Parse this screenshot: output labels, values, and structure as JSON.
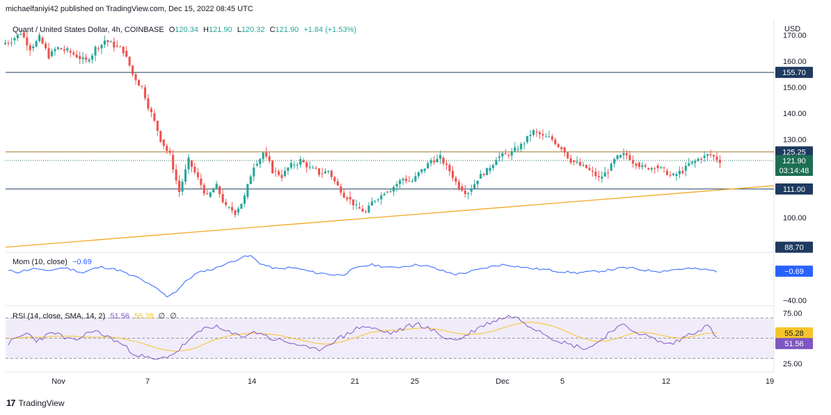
{
  "header": {
    "published": "michaelfaniyi42 published on TradingView.com, Dec 15, 2022 08:45 UTC"
  },
  "brand": {
    "name": "TradingView",
    "logo": "tv-logo-icon"
  },
  "colors": {
    "up": "#26a69a",
    "down": "#ef5350",
    "resistance": "#f5a623",
    "trend": "#f5a623",
    "level": "#1e3a5f",
    "price_tag": "#1e6e55",
    "mom_line": "#2962ff",
    "rsi_line": "#7e57c2",
    "rsi_ma": "#f7c52b",
    "rsi_band": "#e8e0f6"
  },
  "chart_data": [
    {
      "type": "candlestick",
      "title": "Quant / United States Dollar, 4h, COINBASE",
      "ohlc_readout": {
        "o_label": "O",
        "o": "120.34",
        "h_label": "H",
        "h": "121.90",
        "l_label": "L",
        "l": "120.32",
        "c_label": "C",
        "c": "121.90",
        "change": "+1.84 (+1.53%)"
      },
      "currency": "USD",
      "y_ticks": [
        "170.00",
        "160.00",
        "150.00",
        "140.00",
        "130.00",
        "100.00"
      ],
      "ylim": [
        87,
        176
      ],
      "x_labels": [
        "Nov",
        "7",
        "14",
        "21",
        "25",
        "Dec",
        "5",
        "12",
        "19"
      ],
      "levels": [
        {
          "name": "resistance-upper",
          "value": 155.7,
          "label": "155.70"
        },
        {
          "name": "resistance-mid",
          "value": 125.25,
          "label": "125.25"
        },
        {
          "name": "support",
          "value": 111.0,
          "label": "111.00"
        }
      ],
      "last_price": {
        "value": 121.9,
        "label": "121.90",
        "countdown": "03:14:48"
      },
      "trendline": {
        "from": 88.7,
        "to": 112.3,
        "label": "88.70"
      },
      "key_closes": [
        168,
        171,
        165,
        169,
        162,
        165,
        164,
        162,
        160,
        165,
        168,
        166,
        164,
        155,
        150,
        140,
        130,
        124,
        110,
        122,
        115,
        108,
        112,
        104,
        102,
        108,
        120,
        125,
        118,
        116,
        120,
        122,
        119,
        117,
        118,
        112,
        108,
        104,
        102,
        107,
        110,
        112,
        115,
        114,
        118,
        122,
        123,
        118,
        112,
        110,
        115,
        118,
        123,
        124,
        126,
        129,
        133,
        131,
        130,
        127,
        122,
        120,
        118,
        115,
        118,
        123,
        124,
        121,
        119,
        120,
        118,
        116,
        118,
        121,
        123,
        124,
        121.9
      ]
    },
    {
      "type": "line",
      "name": "Mom (10, close)",
      "value": "−0.69",
      "y_ticks": [
        "−40.00"
      ],
      "current_label": "−0.69",
      "values": [
        0,
        -2,
        1,
        3,
        -1,
        2,
        4,
        1,
        -3,
        2,
        5,
        3,
        0,
        -6,
        -10,
        -18,
        -25,
        -35,
        -28,
        -15,
        -5,
        0,
        2,
        8,
        12,
        18,
        20,
        10,
        5,
        2,
        4,
        3,
        0,
        -3,
        -4,
        -6,
        -5,
        2,
        6,
        8,
        6,
        4,
        5,
        7,
        8,
        6,
        2,
        -2,
        -5,
        -3,
        0,
        3,
        6,
        8,
        7,
        5,
        3,
        2,
        1,
        -1,
        -2,
        -3,
        -2,
        -1,
        0,
        2,
        4,
        3,
        1,
        0,
        -1,
        1,
        2,
        3,
        2,
        1,
        -0.69
      ]
    },
    {
      "type": "line",
      "name": "RSI (14, close, SMA, 14, 2)",
      "values_label": "51.56",
      "ma_label": "55.28",
      "extra_labels": [
        "∅",
        "∅"
      ],
      "y_ticks": [
        "75.00",
        "25.00"
      ],
      "rsi_label": "51.56",
      "ma_value_label": "55.28",
      "values": [
        45,
        50,
        55,
        48,
        52,
        56,
        50,
        47,
        52,
        58,
        54,
        50,
        45,
        38,
        33,
        30,
        28,
        32,
        36,
        45,
        52,
        60,
        62,
        58,
        54,
        52,
        55,
        56,
        50,
        48,
        46,
        44,
        40,
        38,
        42,
        48,
        52,
        58,
        62,
        60,
        57,
        55,
        58,
        62,
        64,
        60,
        55,
        50,
        48,
        52,
        58,
        63,
        67,
        70,
        72,
        68,
        62,
        58,
        52,
        48,
        44,
        42,
        40,
        44,
        52,
        60,
        62,
        58,
        54,
        50,
        46,
        44,
        48,
        54,
        58,
        62,
        51.56
      ],
      "ma": [
        50,
        50,
        51,
        51,
        51,
        52,
        52,
        52,
        51,
        51,
        51,
        51,
        50,
        48,
        46,
        43,
        40,
        38,
        37,
        38,
        40,
        44,
        48,
        51,
        53,
        54,
        55,
        55,
        54,
        53,
        51,
        49,
        47,
        45,
        44,
        45,
        47,
        50,
        53,
        56,
        57,
        58,
        58,
        59,
        60,
        60,
        59,
        57,
        55,
        54,
        54,
        55,
        57,
        60,
        63,
        65,
        66,
        65,
        63,
        60,
        56,
        52,
        49,
        47,
        47,
        49,
        52,
        55,
        56,
        55,
        53,
        51,
        50,
        51,
        53,
        55,
        55.28
      ]
    }
  ]
}
